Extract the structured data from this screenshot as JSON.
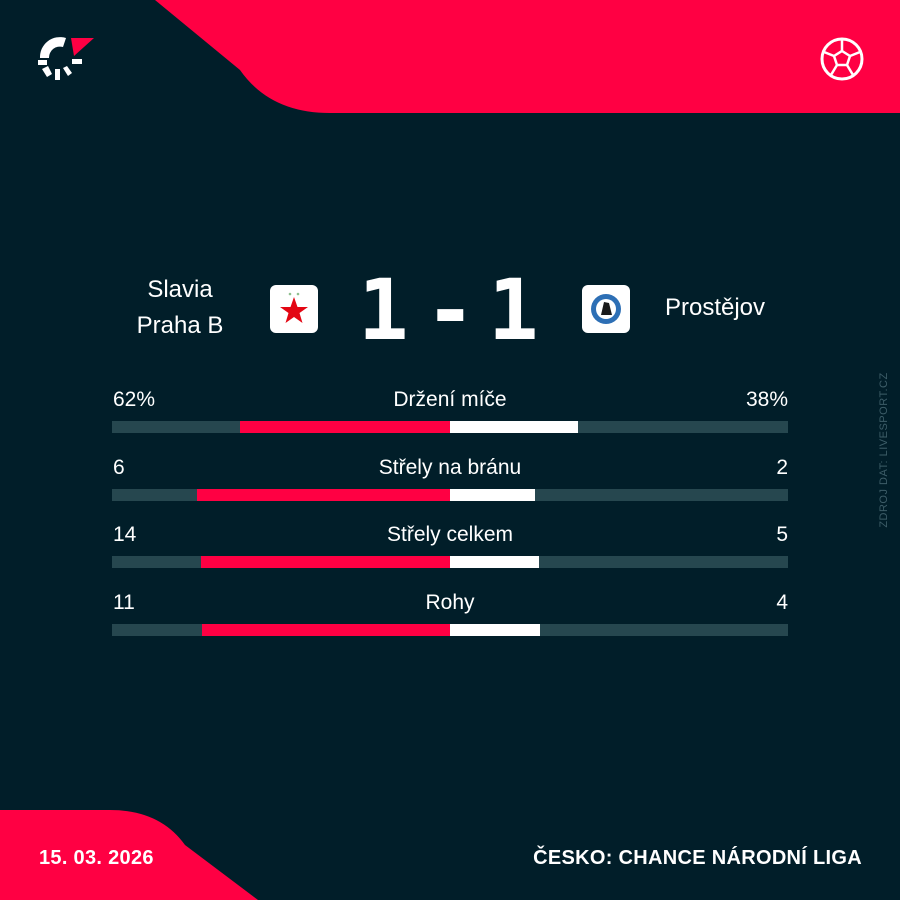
{
  "colors": {
    "background": "#011e29",
    "accent": "#ff0043",
    "track": "#26474f",
    "away_bar": "#ffffff"
  },
  "brand_icon": "livesport-logo-icon",
  "sport_icon": "soccer-ball-icon",
  "match": {
    "home_team": {
      "name_line1": "Slavia",
      "name_line2": "Praha B",
      "crest": "slavia-star-crest"
    },
    "away_team": {
      "name": "Prostějov",
      "crest": "prostejov-crest"
    },
    "home_score": "1",
    "separator": "-",
    "away_score": "1"
  },
  "stats": [
    {
      "label": "Držení míče",
      "home": "62%",
      "away": "38%",
      "home_value": 62,
      "away_value": 38
    },
    {
      "label": "Střely na bránu",
      "home": "6",
      "away": "2",
      "home_value": 6,
      "away_value": 2
    },
    {
      "label": "Střely celkem",
      "home": "14",
      "away": "5",
      "home_value": 14,
      "away_value": 5
    },
    {
      "label": "Rohy",
      "home": "11",
      "away": "4",
      "home_value": 11,
      "away_value": 4
    }
  ],
  "footer": {
    "date": "15. 03. 2026",
    "competition": "ČESKO: CHANCE NÁRODNÍ LIGA"
  },
  "watermark": "ZDROJ DAT: LIVESPORT.CZ"
}
